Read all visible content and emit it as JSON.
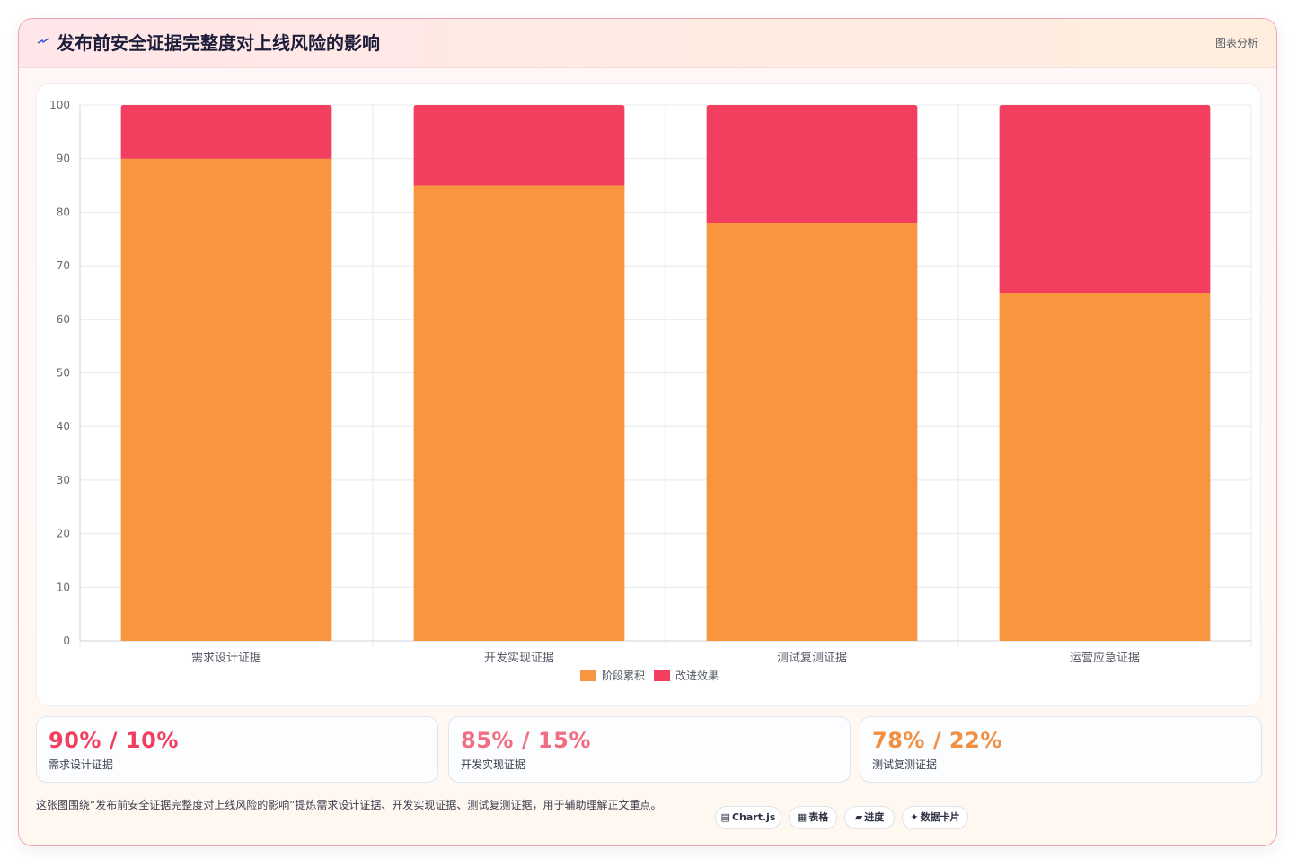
{
  "header": {
    "title": "发布前安全证据完整度对上线风险的影响",
    "tag": "图表分析"
  },
  "colors": {
    "orange": "#f9943f",
    "red": "#f23f5f",
    "pink": "#ef6e82",
    "amber": "#f18f42"
  },
  "chart_data": {
    "type": "bar",
    "stacked": true,
    "categories": [
      "需求设计证据",
      "开发实现证据",
      "测试复测证据",
      "运营应急证据"
    ],
    "series": [
      {
        "name": "阶段累积",
        "values": [
          90,
          85,
          78,
          65
        ],
        "color": "#f9943f"
      },
      {
        "name": "改进效果",
        "values": [
          10,
          15,
          22,
          35
        ],
        "color": "#f23f5f"
      }
    ],
    "ylim": [
      0,
      100
    ],
    "yticks": [
      0,
      10,
      20,
      30,
      40,
      50,
      60,
      70,
      80,
      90,
      100
    ],
    "grid": true,
    "legend": "bottom-center"
  },
  "stats": [
    {
      "value": "90% / 10%",
      "label": "需求设计证据",
      "color": "#f23f5f"
    },
    {
      "value": "85% / 15%",
      "label": "开发实现证据",
      "color": "#ef6e82"
    },
    {
      "value": "78% / 22%",
      "label": "测试复测证据",
      "color": "#f18f42"
    }
  ],
  "footer": {
    "text": "这张图围绕“发布前安全证据完整度对上线风险的影响”提炼需求设计证据、开发实现证据、测试复测证据，用于辅助理解正文重点。",
    "tags": [
      {
        "icon": "▤",
        "icon_name": "chart-icon",
        "label": "Chart.js"
      },
      {
        "icon": "▦",
        "icon_name": "table-icon",
        "label": "表格"
      },
      {
        "icon": "▰",
        "icon_name": "progress-icon",
        "label": "进度"
      },
      {
        "icon": "✦",
        "icon_name": "sparkle-icon",
        "label": "数据卡片"
      }
    ]
  }
}
